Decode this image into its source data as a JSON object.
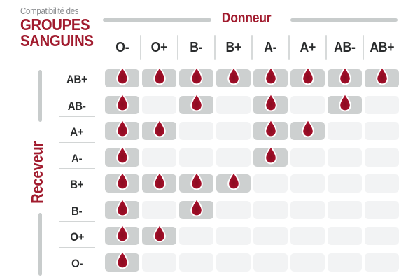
{
  "title": {
    "eyebrow": "Compatibilité des",
    "line1": "GROUPES",
    "line2": "SANGUINS"
  },
  "axes": {
    "donor_label": "Donneur",
    "receiver_label": "Receveur"
  },
  "icons": {
    "compatible_marker": "blood-drop-icon"
  },
  "colors": {
    "accent_red": "#a11b2e",
    "drop_red": "#ab0e27",
    "drop_dark_center": "#8a0b20",
    "drop_light_edge": "#b5122f",
    "drop_outline": "#ffffff",
    "cell_filled_gray": "#cdd0d0",
    "cell_empty_gray": "#f2f3f4",
    "bar_gray": "#c8cccc",
    "text_dark": "#2a2c2d",
    "text_gray": "#87898c"
  },
  "chart_data": {
    "type": "heatmap",
    "title": "Compatibilité des GROUPES SANGUINS",
    "x_axis_label": "Donneur",
    "y_axis_label": "Receveur",
    "columns": [
      "O-",
      "O+",
      "B-",
      "B+",
      "A-",
      "A+",
      "AB-",
      "AB+"
    ],
    "rows": [
      "AB+",
      "AB-",
      "A+",
      "A-",
      "B+",
      "B-",
      "O+",
      "O-"
    ],
    "matrix": [
      [
        1,
        1,
        1,
        1,
        1,
        1,
        1,
        1
      ],
      [
        1,
        0,
        1,
        0,
        1,
        0,
        1,
        0
      ],
      [
        1,
        1,
        0,
        0,
        1,
        1,
        0,
        0
      ],
      [
        1,
        0,
        0,
        0,
        1,
        0,
        0,
        0
      ],
      [
        1,
        1,
        1,
        1,
        0,
        0,
        0,
        0
      ],
      [
        1,
        0,
        1,
        0,
        0,
        0,
        0,
        0
      ],
      [
        1,
        1,
        0,
        0,
        0,
        0,
        0,
        0
      ],
      [
        1,
        0,
        0,
        0,
        0,
        0,
        0,
        0
      ]
    ],
    "cell_marker": "blood-drop = compatible, empty = not compatible"
  }
}
